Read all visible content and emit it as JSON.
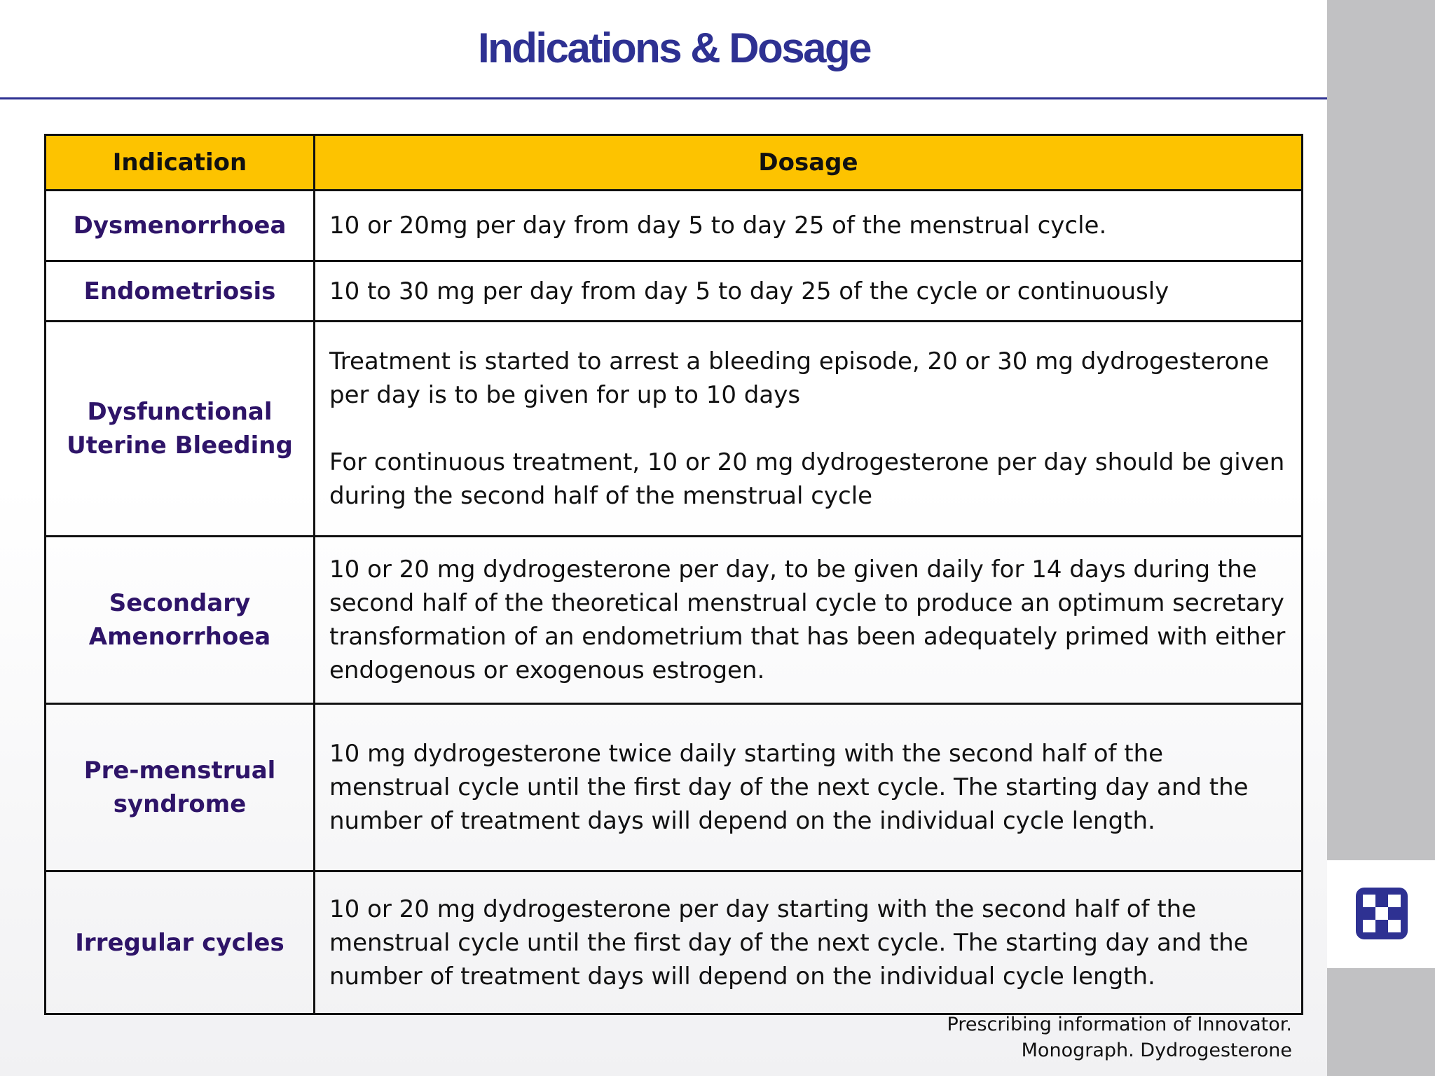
{
  "slide": {
    "title": "Indications & Dosage"
  },
  "colors": {
    "title": "#2e3192",
    "header_fill": "#fdc300",
    "indication_text": "#2e1468",
    "sidebar": "#c1c1c3",
    "logo": "#2e3192"
  },
  "table": {
    "headers": [
      "Indication",
      "Dosage"
    ],
    "rows": [
      {
        "indication": "Dysmenorrhoea",
        "dosage": [
          "10 or 20mg per day from day 5 to day 25 of the menstrual cycle."
        ]
      },
      {
        "indication": "Endometriosis",
        "dosage": [
          "10 to 30 mg per day from day 5 to day 25 of the cycle or continuously"
        ]
      },
      {
        "indication": "Dysfunctional Uterine Bleeding",
        "dosage": [
          "Treatment is started to arrest a bleeding episode, 20 or 30 mg dydrogesterone per day is to be given for up to 10 days",
          "For continuous treatment, 10 or 20 mg dydrogesterone per day should be given during the second half of the menstrual cycle"
        ]
      },
      {
        "indication": "Secondary Amenorrhoea",
        "dosage": [
          "10 or 20 mg dydrogesterone per day, to be given daily for 14 days during the second half of the theoretical menstrual cycle to produce an optimum secretary transformation of an endometrium that has been adequately primed with either endogenous or exogenous estrogen."
        ]
      },
      {
        "indication": "Pre-menstrual syndrome",
        "dosage": [
          "10 mg dydrogesterone twice daily starting with the second half of the menstrual cycle until the first day of the next cycle. The starting day and the number of treatment days will depend on the individual cycle length."
        ]
      },
      {
        "indication": "Irregular cycles",
        "dosage": [
          "10 or 20 mg dydrogesterone per day starting with the second half of the menstrual cycle until the first day of the next cycle. The starting day and the number of treatment days will depend on the individual cycle length."
        ]
      }
    ]
  },
  "footnote": {
    "line1": "Prescribing information of Innovator.",
    "line2": "Monograph. Dydrogesterone"
  },
  "logo": {
    "icon": "checkered-logo-icon"
  }
}
